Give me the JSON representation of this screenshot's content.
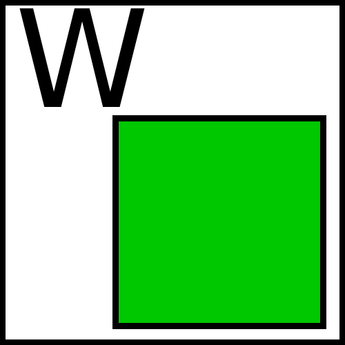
{
  "letter": "W",
  "colors": {
    "frame_border": "#000000",
    "background": "#ffffff",
    "square_fill": "#00c800",
    "square_border": "#000000",
    "letter": "#000000"
  }
}
